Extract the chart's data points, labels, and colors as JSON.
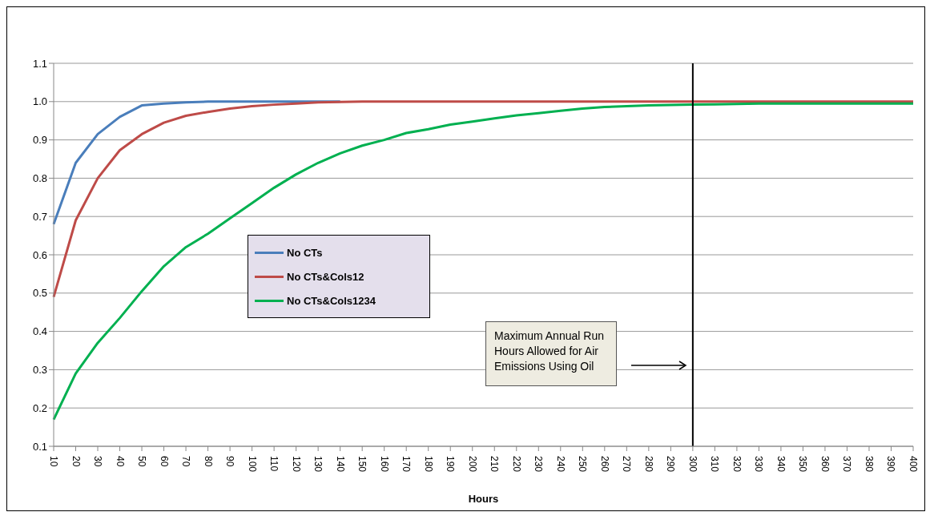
{
  "chart_data": {
    "type": "line",
    "xlabel": "Hours",
    "categories": [
      "10",
      "20",
      "30",
      "40",
      "50",
      "60",
      "70",
      "80",
      "90",
      "100",
      "110",
      "120",
      "130",
      "140",
      "150",
      "160",
      "170",
      "180",
      "190",
      "200",
      "210",
      "220",
      "230",
      "240",
      "250",
      "260",
      "270",
      "280",
      "290",
      "300",
      "310",
      "320",
      "330",
      "340",
      "350",
      "360",
      "370",
      "380",
      "390",
      "400"
    ],
    "series": [
      {
        "name": "No CTs",
        "color": "#4a7ebb",
        "values": [
          0.68,
          0.84,
          0.915,
          0.96,
          0.99,
          0.995,
          0.998,
          1,
          1,
          1,
          1,
          1,
          1,
          1,
          null,
          null,
          null,
          null,
          null,
          null,
          null,
          null,
          null,
          null,
          null,
          null,
          null,
          null,
          null,
          null,
          null,
          null,
          null,
          null,
          null,
          null,
          null,
          null,
          null,
          null
        ]
      },
      {
        "name": "No CTs&Cols12",
        "color": "#be4b48",
        "values": [
          0.49,
          0.69,
          0.8,
          0.873,
          0.915,
          0.945,
          0.963,
          0.973,
          0.982,
          0.988,
          0.992,
          0.995,
          0.998,
          0.999,
          1,
          1,
          1,
          1,
          1,
          1,
          1,
          1,
          1,
          1,
          1,
          1,
          1,
          1,
          1,
          1,
          1,
          1,
          1,
          1,
          1,
          1,
          1,
          1,
          1,
          1
        ]
      },
      {
        "name": "No CTs&Cols1234",
        "color": "#00b050",
        "values": [
          0.17,
          0.29,
          0.37,
          0.435,
          0.505,
          0.57,
          0.62,
          0.655,
          0.695,
          0.735,
          0.775,
          0.81,
          0.84,
          0.865,
          0.885,
          0.9,
          0.918,
          0.928,
          0.94,
          0.948,
          0.956,
          0.964,
          0.97,
          0.976,
          0.982,
          0.986,
          0.988,
          0.99,
          0.991,
          0.992,
          0.993,
          0.994,
          0.995,
          0.995,
          0.995,
          0.995,
          0.995,
          0.995,
          0.995,
          0.995
        ]
      }
    ],
    "ylim": [
      0.1,
      1.1
    ],
    "yticks": [
      0.1,
      0.2,
      0.3,
      0.4,
      0.5,
      0.6,
      0.7,
      0.8,
      0.9,
      {
        "value": 1,
        "label": "1.0"
      },
      1.1
    ],
    "grid": "y",
    "legend": "left",
    "marker": "none",
    "line_style": "solid",
    "ref_lines": [
      {
        "axis": "x",
        "value": "300",
        "color": "#000000"
      }
    ],
    "annotations": [
      "Maximum Annual Run Hours Allowed for Air Emissions Using Oil"
    ]
  }
}
